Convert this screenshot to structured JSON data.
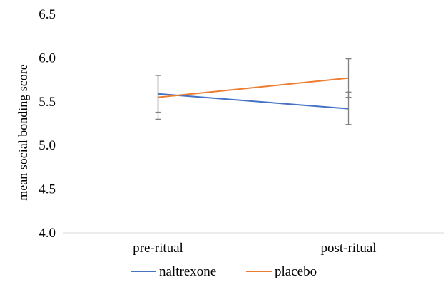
{
  "chart_data": {
    "type": "line",
    "title": "",
    "xlabel": "",
    "ylabel": "mean social bonding score",
    "categories": [
      "pre-ritual",
      "post-ritual"
    ],
    "ylim": [
      4.0,
      6.5
    ],
    "yticks": [
      "4.0",
      "4.5",
      "5.0",
      "5.5",
      "6.0",
      "6.5"
    ],
    "grid": false,
    "legend": "bottom",
    "series": [
      {
        "name": "naltrexone",
        "color": "#4472c4",
        "values": [
          5.59,
          5.42
        ],
        "error_low": [
          5.38,
          5.24
        ],
        "error_high": [
          5.8,
          5.61
        ]
      },
      {
        "name": "placebo",
        "color": "#ed7d31",
        "values": [
          5.55,
          5.77
        ],
        "error_low": [
          5.3,
          5.55
        ],
        "error_high": [
          5.8,
          5.99
        ]
      }
    ]
  }
}
